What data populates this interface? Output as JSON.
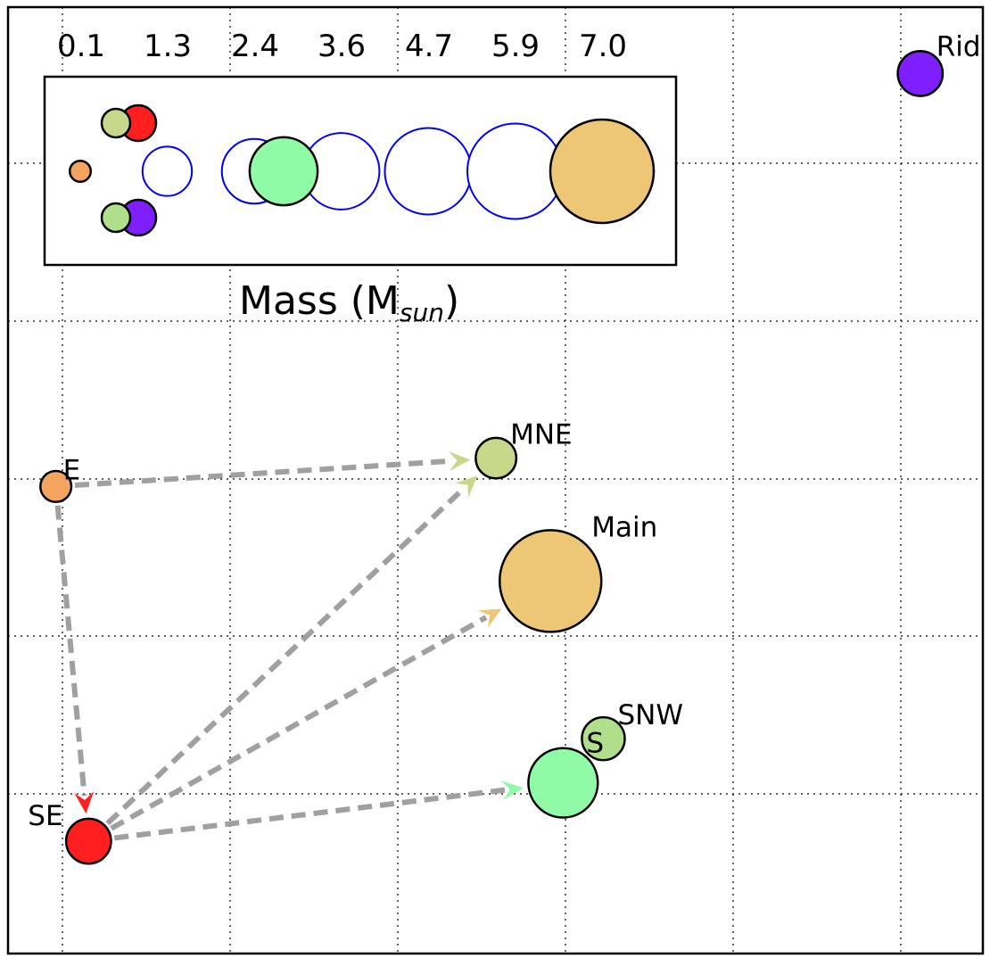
{
  "chart_data": {
    "type": "scatter",
    "title": "",
    "xlabel": "",
    "ylabel": "",
    "grid": true,
    "nodes": [
      {
        "name": "Ridge",
        "x": 10.87,
        "y": 4.57,
        "mass": 0.6,
        "color": "#7f1fff"
      },
      {
        "name": "MNE",
        "x": 5.81,
        "y": 2.13,
        "mass": 0.4,
        "color": "#c8d88a"
      },
      {
        "name": "E",
        "x": 0.56,
        "y": 1.95,
        "mass": 0.1,
        "color": "#f5a460"
      },
      {
        "name": "Main",
        "x": 6.46,
        "y": 1.35,
        "mass": 7.0,
        "color": "#edc775"
      },
      {
        "name": "SNW",
        "x": 7.09,
        "y": 0.35,
        "mass": 0.5,
        "color": "#b0df8c"
      },
      {
        "name": "S",
        "x": 6.61,
        "y": 0.07,
        "mass": 2.5,
        "color": "#8ffba6"
      },
      {
        "name": "SE",
        "x": 0.95,
        "y": -0.3,
        "mass": 0.6,
        "color": "#ff1f1f"
      }
    ],
    "arrows": [
      {
        "from": "E",
        "to": "MNE",
        "color": "#c8d88a"
      },
      {
        "from": "E",
        "to": "SE",
        "color": "#ff1f1f"
      },
      {
        "from": "SE",
        "to": "MNE",
        "color": "#c8d88a"
      },
      {
        "from": "SE",
        "to": "Main",
        "color": "#edc775"
      },
      {
        "from": "SE",
        "to": "S",
        "color": "#8ffba6"
      }
    ],
    "inset": {
      "xlabel_prefix": "Mass (M",
      "xlabel_sub": "sun",
      "xlabel_suffix": ")",
      "ticks": [
        "0.1",
        "1.3",
        "2.4",
        "3.6",
        "4.7",
        "5.9",
        "7.0"
      ],
      "tick_values": [
        0.1,
        1.25,
        2.4,
        3.55,
        4.7,
        5.85,
        7.0
      ],
      "scale_circles": [
        {
          "mass": 0.1,
          "color": "#f5a460",
          "filled": true,
          "row": "mid"
        },
        {
          "mass": 1.25,
          "color": "#0000ff",
          "filled": false,
          "row": "mid"
        },
        {
          "mass": 2.4,
          "color": "#0000ff",
          "filled": false,
          "row": "mid"
        },
        {
          "mass": 3.55,
          "color": "#0000ff",
          "filled": false,
          "row": "mid"
        },
        {
          "mass": 4.7,
          "color": "#0000ff",
          "filled": false,
          "row": "mid"
        },
        {
          "mass": 5.85,
          "color": "#0000ff",
          "filled": false,
          "row": "mid"
        },
        {
          "mass": 7.0,
          "color": "#edc775",
          "filled": true,
          "row": "mid"
        },
        {
          "mass": 2.7,
          "color": "#8ffba6",
          "filled": true,
          "row": "mid"
        },
        {
          "mass": 0.75,
          "color": "#ff1f1f",
          "filled": true,
          "row": "top"
        },
        {
          "mass": 0.45,
          "color": "#c8d88a",
          "filled": true,
          "row": "top"
        },
        {
          "mass": 0.75,
          "color": "#7f1fff",
          "filled": true,
          "row": "bottom"
        },
        {
          "mass": 0.45,
          "color": "#b0df8c",
          "filled": true,
          "row": "bottom"
        }
      ]
    }
  }
}
